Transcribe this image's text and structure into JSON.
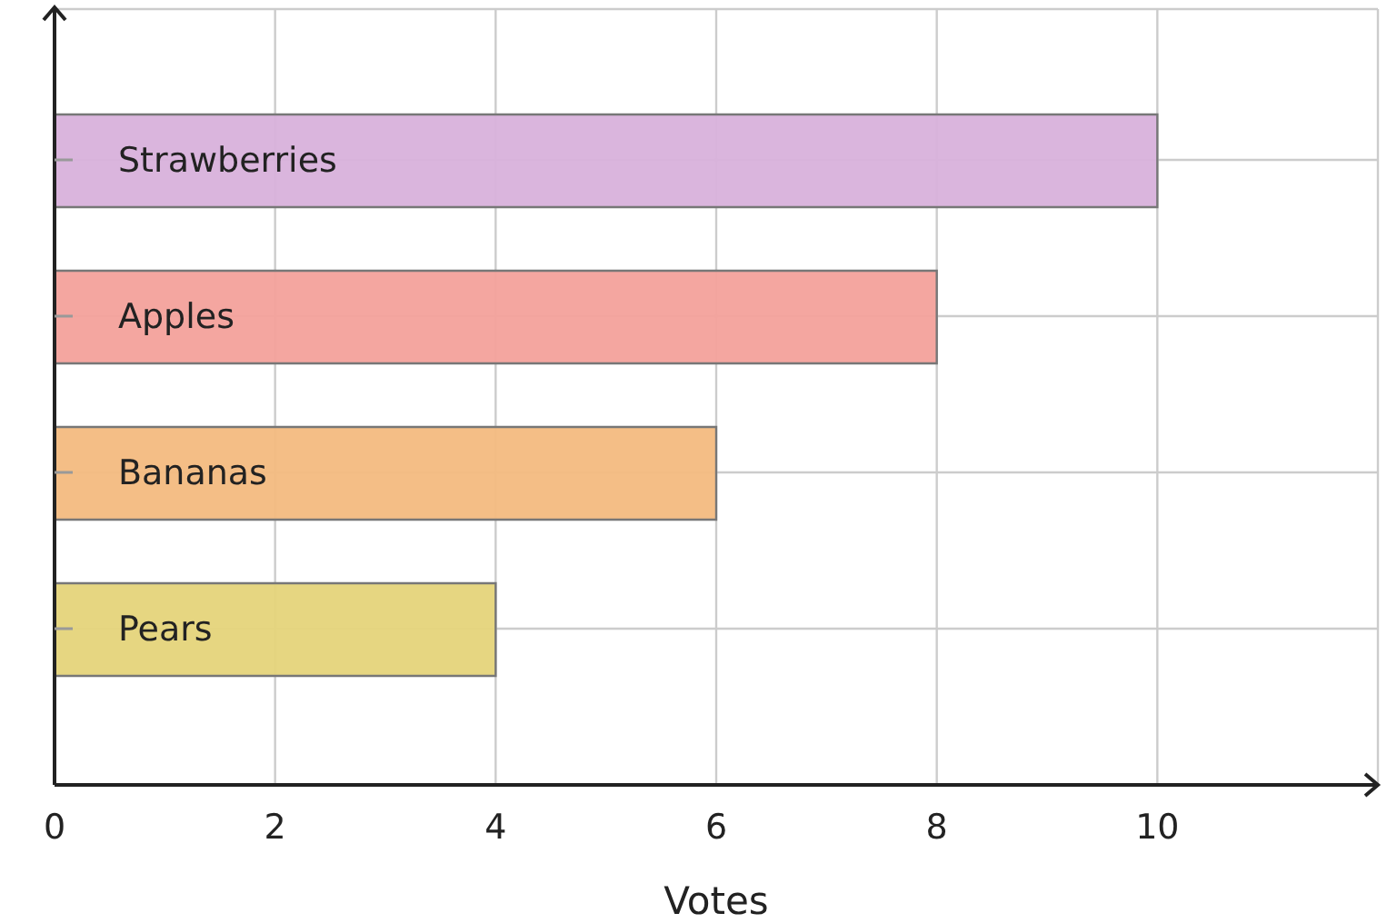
{
  "chart_data": {
    "type": "bar",
    "orientation": "horizontal",
    "xlabel": "Votes",
    "categories": [
      "Strawberries",
      "Apples",
      "Bananas",
      "Pears"
    ],
    "values": [
      10,
      8,
      6,
      4
    ],
    "colors": [
      "#d8b1db",
      "#f3a19b",
      "#f3bb80",
      "#e5d47a"
    ],
    "xlim": [
      0,
      12
    ],
    "xticks": [
      0,
      2,
      4,
      6,
      8,
      10
    ],
    "grid": true,
    "legend": false
  }
}
